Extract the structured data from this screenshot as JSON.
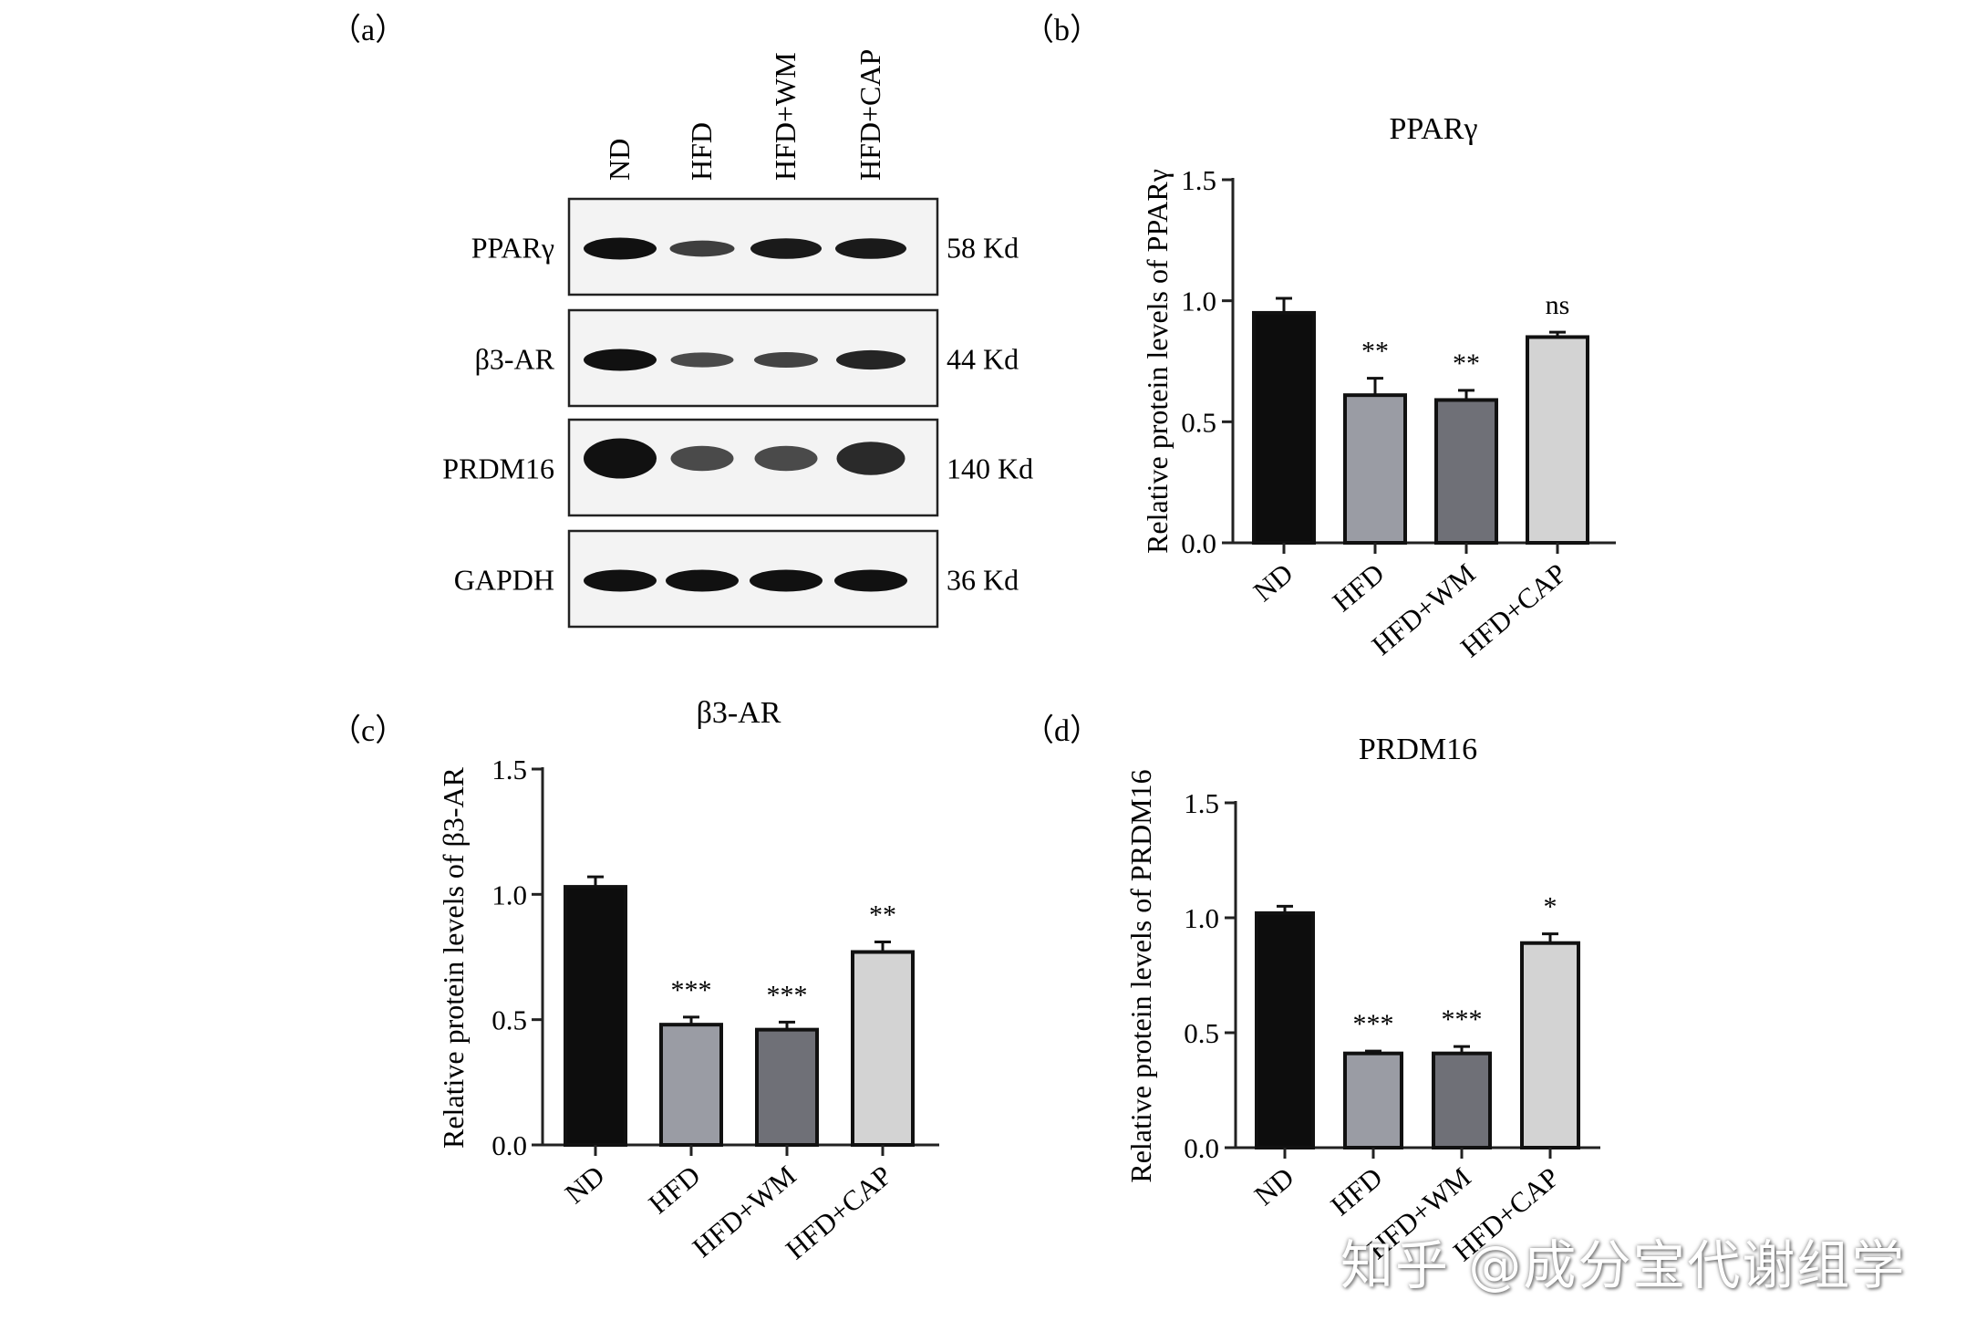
{
  "blot": {
    "panel_label": "（a）",
    "lanes": [
      "ND",
      "HFD",
      "HFD+WM",
      "HFD+CAP"
    ],
    "rows": [
      {
        "protein": "PPARγ",
        "size": "58 Kd",
        "intensity": [
          1.0,
          0.55,
          0.9,
          0.9
        ]
      },
      {
        "protein": "β3-AR",
        "size": "44 Kd",
        "intensity": [
          1.0,
          0.45,
          0.5,
          0.8
        ]
      },
      {
        "protein": "PRDM16",
        "size": "140 Kd",
        "intensity": [
          1.0,
          0.45,
          0.45,
          0.75
        ]
      },
      {
        "protein": "GAPDH",
        "size": "36 Kd",
        "intensity": [
          1.0,
          1.0,
          1.0,
          1.0
        ]
      }
    ]
  },
  "chart_data": [
    {
      "panel_label": "（b）",
      "type": "bar",
      "title": "PPARγ",
      "ylabel": "Relative protein levels of PPARγ",
      "categories": [
        "ND",
        "HFD",
        "HFD+WM",
        "HFD+CAP"
      ],
      "values": [
        0.95,
        0.61,
        0.59,
        0.85
      ],
      "errors": [
        0.06,
        0.07,
        0.04,
        0.02
      ],
      "significance": [
        "",
        "**",
        "**",
        "ns"
      ],
      "ylim": [
        0,
        1.5
      ],
      "yticks": [
        "0.0",
        "0.5",
        "1.0",
        "1.5"
      ]
    },
    {
      "panel_label": "（c）",
      "type": "bar",
      "title": "β3-AR",
      "ylabel": "Relative protein levels of β3-AR",
      "categories": [
        "ND",
        "HFD",
        "HFD+WM",
        "HFD+CAP"
      ],
      "values": [
        1.03,
        0.48,
        0.46,
        0.77
      ],
      "errors": [
        0.04,
        0.03,
        0.03,
        0.04
      ],
      "significance": [
        "",
        "***",
        "***",
        "**"
      ],
      "ylim": [
        0,
        1.5
      ],
      "yticks": [
        "0.0",
        "0.5",
        "1.0",
        "1.5"
      ]
    },
    {
      "panel_label": "（d）",
      "type": "bar",
      "title": "PRDM16",
      "ylabel": "Relative protein levels of PRDM16",
      "categories": [
        "ND",
        "HFD",
        "HFD+WM",
        "HFD+CAP"
      ],
      "values": [
        1.02,
        0.41,
        0.41,
        0.89
      ],
      "errors": [
        0.03,
        0.01,
        0.03,
        0.04
      ],
      "significance": [
        "",
        "***",
        "***",
        "*"
      ],
      "ylim": [
        0,
        1.5
      ],
      "yticks": [
        "0.0",
        "0.5",
        "1.0",
        "1.5"
      ]
    }
  ],
  "colors": {
    "bars": [
      "#0d0d0d",
      "#9a9ca4",
      "#6f7077",
      "#d3d3d3"
    ],
    "axis": "#222222",
    "band": "#111111"
  },
  "watermark": "知乎 @成分宝代谢组学"
}
